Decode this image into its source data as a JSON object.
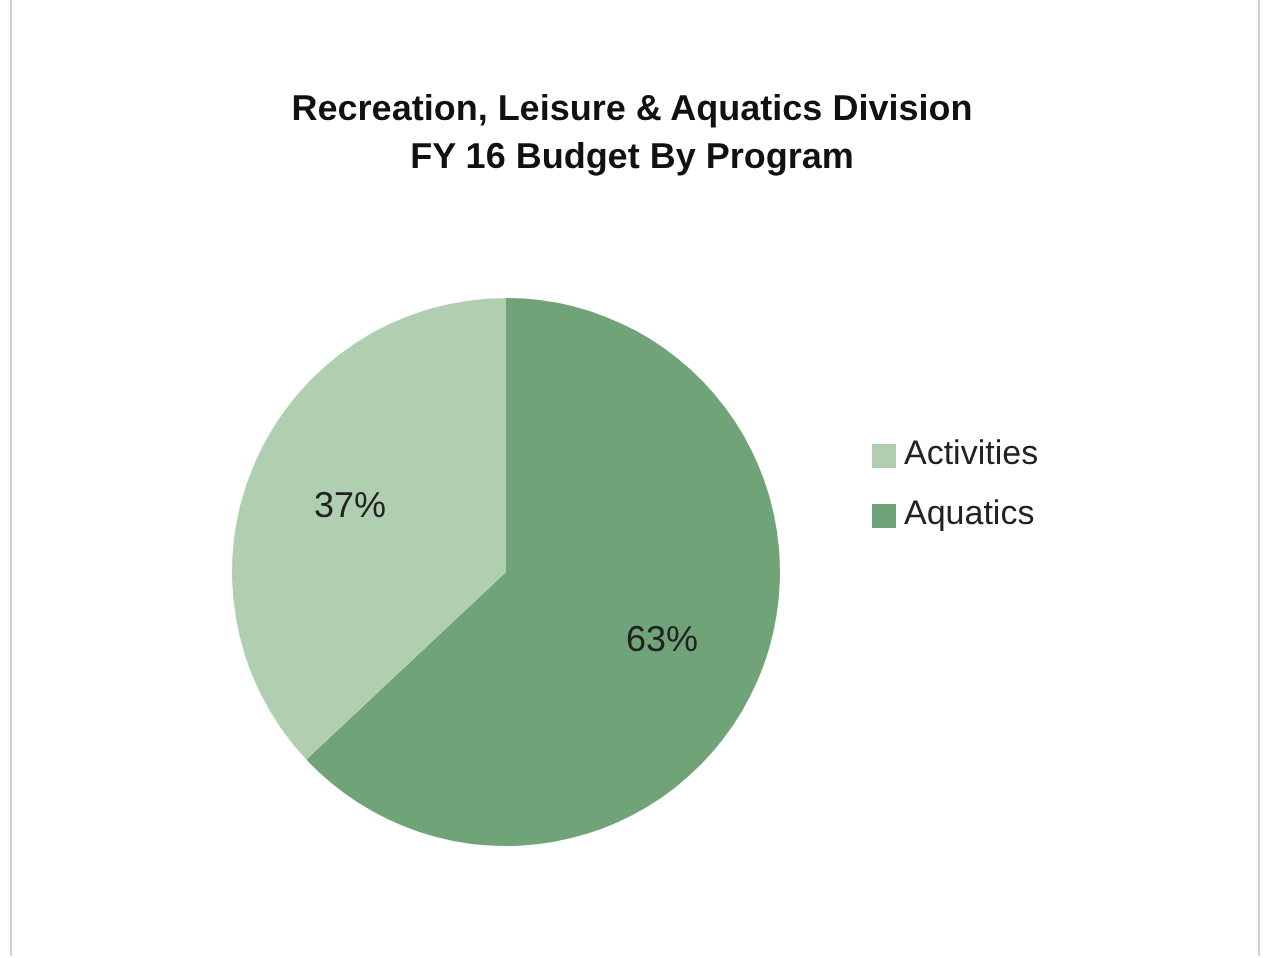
{
  "chart_data": {
    "type": "pie",
    "title": "Recreation, Leisure & Aquatics Division\nFY 16 Budget By Program",
    "categories": [
      "Aquatics",
      "Activities"
    ],
    "values": [
      63,
      37
    ],
    "colors": [
      "#70a478",
      "#b0cfb0"
    ],
    "value_labels": [
      "63%",
      "37%"
    ],
    "legend": "right"
  }
}
